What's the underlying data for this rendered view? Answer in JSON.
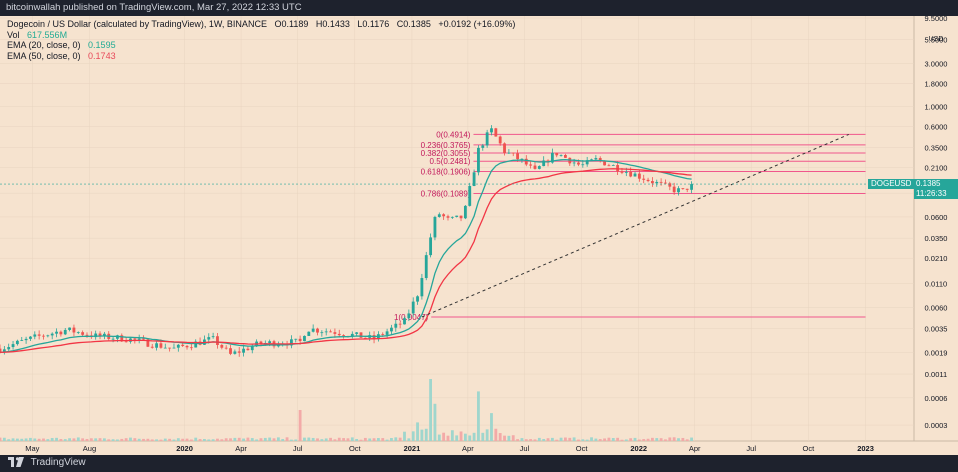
{
  "header": {
    "published": "bitcoinwallah published on TradingView.com, Mar 27, 2022 12:33 UTC"
  },
  "legend": {
    "title": "Dogecoin / US Dollar (calculated by TradingView), 1W, BINANCE",
    "ohlc": [
      "O0.1189",
      "H0.1433",
      "L0.1176",
      "C0.1385",
      "+0.0192 (+16.09%)"
    ],
    "vol_label": "Vol",
    "vol_value": "617.556M",
    "ema20_label": "EMA (20, close, 0)",
    "ema20_value": "0.1595",
    "ema50_label": "EMA (50, close, 0)",
    "ema50_value": "0.1743"
  },
  "price_tag": {
    "symbol": "DOGEUSD",
    "price": "0.1385",
    "countdown": "11:26:33"
  },
  "footer": {
    "brand": "TradingView"
  },
  "colors": {
    "background": "#f6e3cf",
    "frame": "#1e222d",
    "candle_up": "#26a69a",
    "candle_down": "#ef5350",
    "ema20": "#26a69a",
    "ema50": "#f23645",
    "fib": "#f0578c",
    "fib_label": "#c2185b",
    "trendline": "#333333"
  },
  "chart_data": {
    "type": "candlestick",
    "title": "Dogecoin / US Dollar (calculated by TradingView), 1W, BINANCE",
    "y_scale": "log",
    "ylim": [
      0.0002,
      10
    ],
    "y_ticks": [
      "9.5000",
      "5.5000",
      "3.0000",
      "1.8000",
      "1.0000",
      "0.6000",
      "0.3500",
      "0.2100",
      "0.1100",
      "0.0600",
      "0.0350",
      "0.0210",
      "0.0110",
      "0.0060",
      "0.0035",
      "0.0019",
      "0.0011",
      "0.0006",
      "0.0003"
    ],
    "y_unit_label": "USD",
    "x_ticks": [
      "May",
      "Aug",
      "2020",
      "Apr",
      "Jul",
      "Oct",
      "2021",
      "Apr",
      "Jul",
      "Oct",
      "2022",
      "Apr",
      "Jul",
      "Oct",
      "2023"
    ],
    "x_tick_dates": [
      "2019-05-01",
      "2019-08-01",
      "2020-01-01",
      "2020-04-01",
      "2020-07-01",
      "2020-10-01",
      "2021-01-01",
      "2021-04-01",
      "2021-07-01",
      "2021-10-01",
      "2022-01-01",
      "2022-04-01",
      "2022-07-01",
      "2022-10-01",
      "2023-01-01"
    ],
    "xlim": [
      "2019-03-10",
      "2023-03-20"
    ],
    "grid": true,
    "fib_levels": [
      {
        "label": "0(0.4914)",
        "value": 0.4914
      },
      {
        "label": "0.236(0.3765)",
        "value": 0.3765
      },
      {
        "label": "0.382(0.3055)",
        "value": 0.3055
      },
      {
        "label": "0.5(0.2481)",
        "value": 0.2481
      },
      {
        "label": "0.618(0.1906)",
        "value": 0.1906
      },
      {
        "label": "0.786(0.1089)",
        "value": 0.1089
      },
      {
        "label": "1(0.0047)",
        "value": 0.0047
      }
    ],
    "fib_range": [
      "2021-01-03",
      "2023-01-01"
    ],
    "trendline": {
      "from": [
        "2021-01-17",
        0.0047
      ],
      "to": [
        "2022-12-05",
        0.49
      ]
    },
    "current_price": 0.1385,
    "anchors": [
      [
        "2019-03-10",
        0.0021
      ],
      [
        "2019-05-05",
        0.0028
      ],
      [
        "2019-06-25",
        0.0034
      ],
      [
        "2019-08-10",
        0.0029
      ],
      [
        "2019-10-01",
        0.0027
      ],
      [
        "2019-12-15",
        0.0021
      ],
      [
        "2020-02-15",
        0.0027
      ],
      [
        "2020-03-15",
        0.0018
      ],
      [
        "2020-05-01",
        0.0024
      ],
      [
        "2020-07-05",
        0.0025
      ],
      [
        "2020-07-15",
        0.0035
      ],
      [
        "2020-09-01",
        0.0032
      ],
      [
        "2020-11-01",
        0.0027
      ],
      [
        "2020-12-20",
        0.0042
      ],
      [
        "2021-01-10",
        0.0084
      ],
      [
        "2021-01-31",
        0.036
      ],
      [
        "2021-02-10",
        0.068
      ],
      [
        "2021-03-01",
        0.055
      ],
      [
        "2021-03-25",
        0.06
      ],
      [
        "2021-04-18",
        0.33
      ],
      [
        "2021-05-08",
        0.56
      ],
      [
        "2021-05-30",
        0.32
      ],
      [
        "2021-06-27",
        0.25
      ],
      [
        "2021-07-18",
        0.19
      ],
      [
        "2021-08-20",
        0.31
      ],
      [
        "2021-09-30",
        0.22
      ],
      [
        "2021-10-25",
        0.26
      ],
      [
        "2021-11-28",
        0.21
      ],
      [
        "2022-01-01",
        0.17
      ],
      [
        "2022-02-01",
        0.14
      ],
      [
        "2022-02-27",
        0.12
      ],
      [
        "2022-03-13",
        0.116
      ],
      [
        "2022-03-27",
        0.1385
      ]
    ],
    "volume_peaks": [
      [
        "2020-07-05",
        0.5
      ],
      [
        "2021-01-31",
        1.0
      ],
      [
        "2021-02-07",
        0.6
      ],
      [
        "2021-04-18",
        0.8
      ],
      [
        "2021-05-09",
        0.45
      ],
      [
        "2021-01-10",
        0.3
      ],
      [
        "2020-12-20",
        0.15
      ]
    ]
  }
}
